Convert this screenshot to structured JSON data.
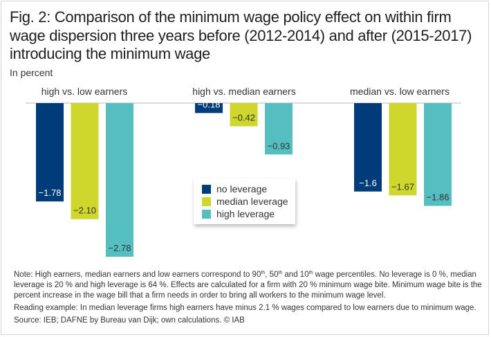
{
  "figure": {
    "title": "Fig. 2: Comparison of the minimum wage policy effect on within firm wage dispersion three years before (2012-2014) and after (2015-2017) introducing the minimum wage",
    "unit_label": "In percent"
  },
  "chart_data": {
    "type": "bar",
    "title": "Fig. 2: Comparison of the minimum wage policy effect on within firm wage dispersion three years before (2012-2014) and after (2015-2017) introducing the minimum wage",
    "ylabel": "In percent",
    "xlabel": "",
    "categories": [
      "high vs. low earners",
      "high vs. median earners",
      "median vs. low earners"
    ],
    "series": [
      {
        "name": "no leverage",
        "color": "#003b7a",
        "values": [
          -1.78,
          -0.18,
          -1.6
        ],
        "labels": [
          "−1.78",
          "−0.18",
          "−1.6"
        ]
      },
      {
        "name": "median leverage",
        "color": "#cfd62c",
        "values": [
          -2.1,
          -0.42,
          -1.67
        ],
        "labels": [
          "−2.10",
          "−0.42",
          "−1.67"
        ]
      },
      {
        "name": "high leverage",
        "color": "#55bec0",
        "values": [
          -2.78,
          -0.93,
          -1.86
        ],
        "labels": [
          "−2.78",
          "−0.93",
          "−1.86"
        ]
      }
    ],
    "ylim": [
      -2.78,
      0
    ],
    "grid": false,
    "legend_position": "center",
    "data_labels": true
  },
  "legend": [
    {
      "label": "no leverage",
      "color": "#003b7a"
    },
    {
      "label": "median leverage",
      "color": "#cfd62c"
    },
    {
      "label": "high leverage",
      "color": "#55bec0"
    }
  ],
  "notes": {
    "note_prefix": "Note: High earners, median earners and low earners correspond to 90",
    "sup1": "th",
    "note_mid1": ", 50",
    "sup2": "th",
    "note_mid2": " and 10",
    "sup3": "th",
    "note_rest": " wage percentiles. No leverage is 0 %, median leverage is 20 % and high leverage is 64 %. Effects are calculated for a firm with 20 % minimum wage bite. Minimum wage bite is the percent increase in the wage bill that a firm needs in order to bring all workers to the minimum wage level.",
    "reading_example": "Reading example: In median leverage firms high earners have minus 2.1 % wages compared to low earners due to minimum wage.",
    "source": "Source: IEB; DAFNE by Bureau van Dijk; own calculations.  © IAB"
  }
}
